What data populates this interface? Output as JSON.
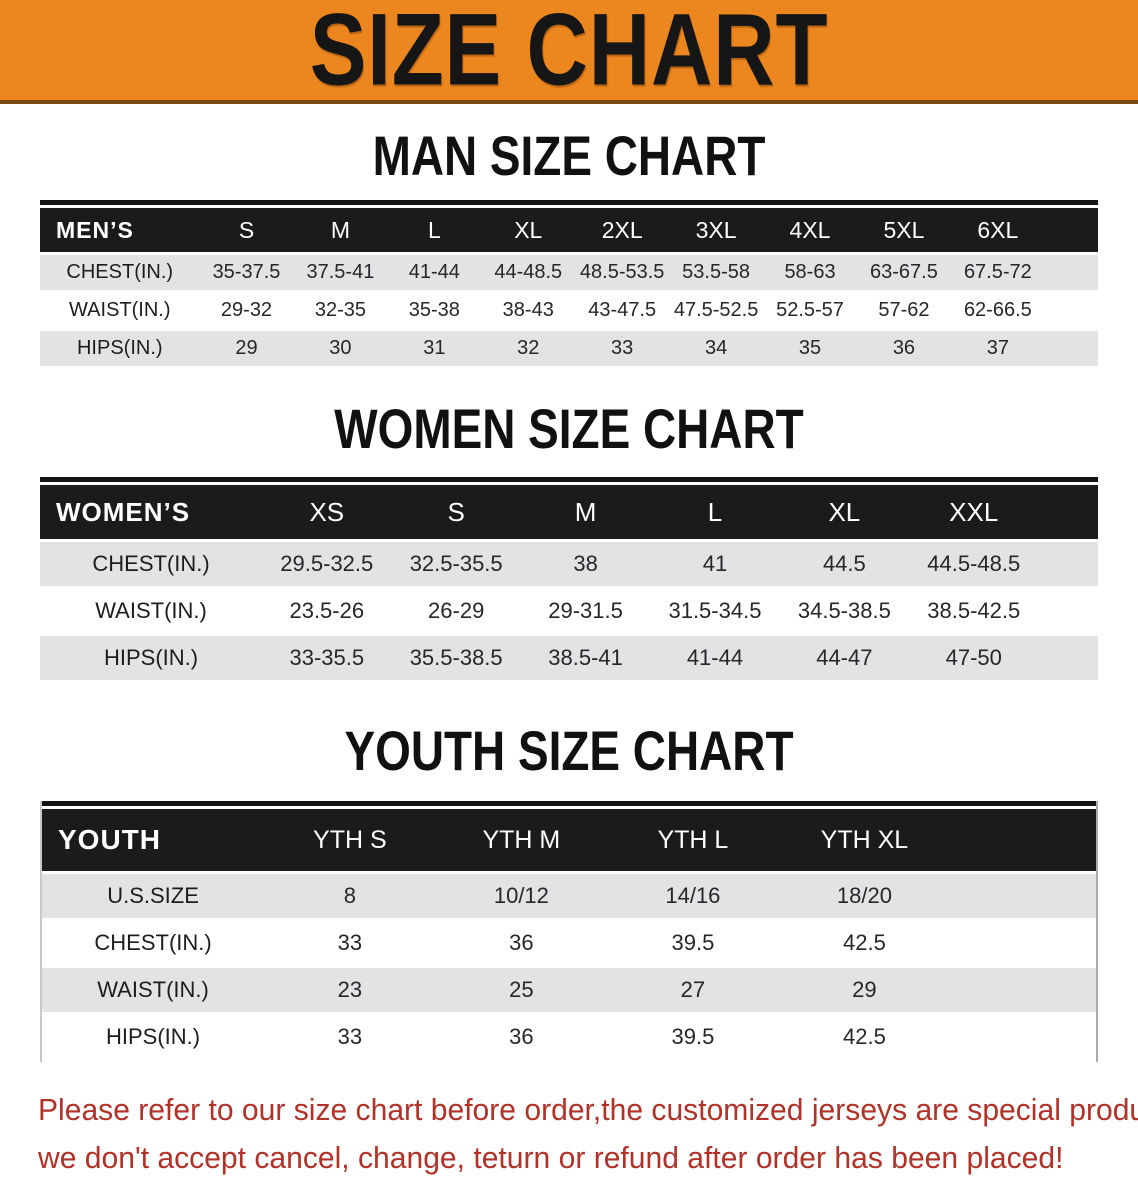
{
  "banner": {
    "title": "SIZE CHART"
  },
  "sections": [
    {
      "title": "MAN SIZE CHART",
      "table": {
        "header_label": "MEN’S",
        "columns": [
          "S",
          "M",
          "L",
          "XL",
          "2XL",
          "3XL",
          "4XL",
          "5XL",
          "6XL"
        ],
        "rows": [
          {
            "label": "CHEST(IN.)",
            "values": [
              "35-37.5",
              "37.5-41",
              "41-44",
              "44-48.5",
              "48.5-53.5",
              "53.5-58",
              "58-63",
              "63-67.5",
              "67.5-72"
            ]
          },
          {
            "label": "WAIST(IN.)",
            "values": [
              "29-32",
              "32-35",
              "35-38",
              "38-43",
              "43-47.5",
              "47.5-52.5",
              "52.5-57",
              "57-62",
              "62-66.5"
            ]
          },
          {
            "label": "HIPS(IN.)",
            "values": [
              "29",
              "30",
              "31",
              "32",
              "33",
              "34",
              "35",
              "36",
              "37"
            ]
          }
        ]
      }
    },
    {
      "title": "WOMEN SIZE CHART",
      "table": {
        "header_label": "WOMEN’S",
        "columns": [
          "XS",
          "S",
          "M",
          "L",
          "XL",
          "XXL"
        ],
        "rows": [
          {
            "label": "CHEST(IN.)",
            "values": [
              "29.5-32.5",
              "32.5-35.5",
              "38",
              "41",
              "44.5",
              "44.5-48.5"
            ]
          },
          {
            "label": "WAIST(IN.)",
            "values": [
              "23.5-26",
              "26-29",
              "29-31.5",
              "31.5-34.5",
              "34.5-38.5",
              "38.5-42.5"
            ]
          },
          {
            "label": "HIPS(IN.)",
            "values": [
              "33-35.5",
              "35.5-38.5",
              "38.5-41",
              "41-44",
              "44-47",
              "47-50"
            ]
          }
        ]
      }
    },
    {
      "title": "YOUTH SIZE CHART",
      "table": {
        "header_label": "YOUTH",
        "columns": [
          "YTH S",
          "YTH M",
          "YTH L",
          "YTH XL"
        ],
        "rows": [
          {
            "label": "U.S.SIZE",
            "values": [
              "8",
              "10/12",
              "14/16",
              "18/20"
            ]
          },
          {
            "label": "CHEST(IN.)",
            "values": [
              "33",
              "36",
              "39.5",
              "42.5"
            ]
          },
          {
            "label": "WAIST(IN.)",
            "values": [
              "23",
              "25",
              "27",
              "29"
            ]
          },
          {
            "label": "HIPS(IN.)",
            "values": [
              "33",
              "36",
              "39.5",
              "42.5"
            ]
          }
        ]
      }
    }
  ],
  "disclaimer": {
    "line1": "Please refer to our size chart before order,the customized jerseys are special products,",
    "line2": "we don't accept cancel, change, teturn or refund after order has been placed!"
  },
  "colors": {
    "banner_orange": "#EC861E",
    "table_header_bg": "#1B1B1B",
    "row_gray": "#E3E3E3",
    "warn_red": "#B13228"
  }
}
